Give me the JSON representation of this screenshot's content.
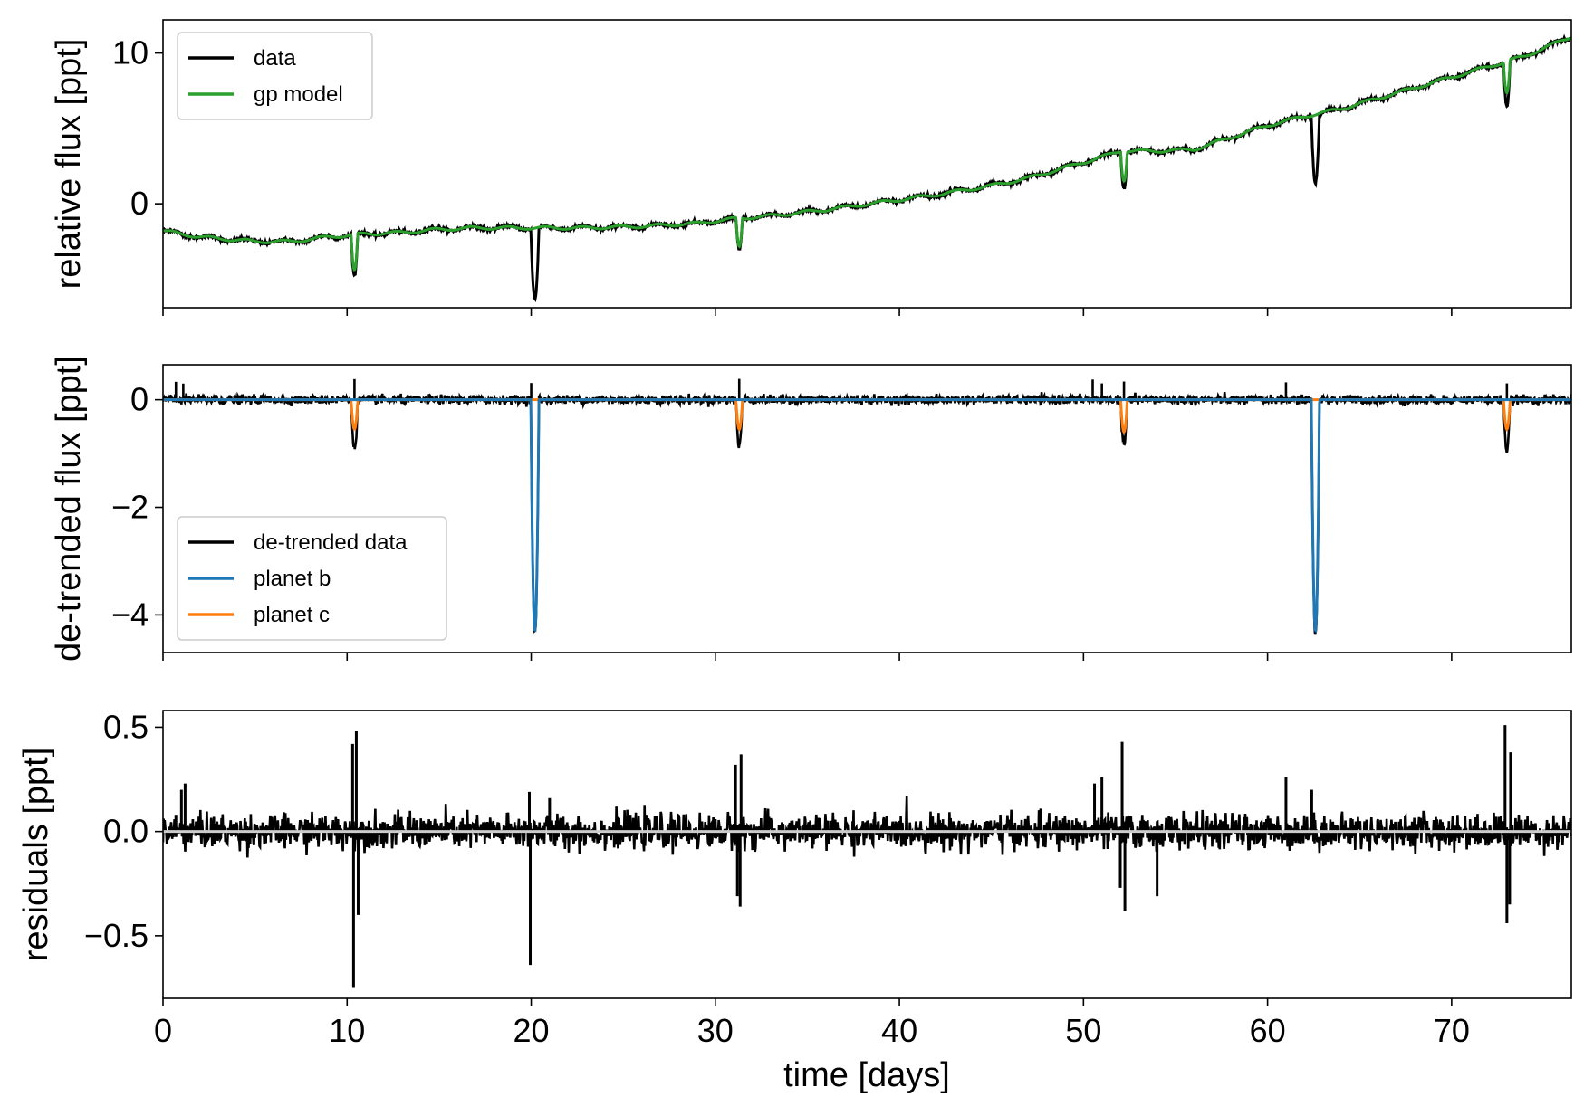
{
  "chart_data": [
    {
      "type": "line",
      "panel": "top",
      "ylabel": "relative flux [ppt]",
      "xlim": [
        0,
        76.5
      ],
      "ylim": [
        -6.9,
        12.2
      ],
      "xticks": [
        0,
        10,
        20,
        30,
        40,
        50,
        60,
        70
      ],
      "yticks": [
        0,
        10
      ],
      "ytick_labels": [
        "0",
        "10"
      ],
      "legend": {
        "position": "top-left",
        "entries": [
          "data",
          "gp model"
        ]
      },
      "trend": {
        "x": [
          0,
          2,
          4,
          5,
          7,
          9,
          11,
          13,
          15,
          17,
          20,
          23,
          26,
          29,
          31,
          33,
          36,
          39,
          42,
          45,
          47,
          49,
          51,
          52,
          54,
          56,
          58,
          60,
          62,
          64,
          66,
          68,
          70,
          72,
          74,
          76.5
        ],
        "y": [
          -1.8,
          -2.2,
          -2.4,
          -2.5,
          -2.5,
          -2.2,
          -2.0,
          -1.9,
          -1.7,
          -1.6,
          -1.6,
          -1.6,
          -1.5,
          -1.3,
          -1.0,
          -0.8,
          -0.4,
          0.1,
          0.6,
          1.2,
          1.7,
          2.4,
          3.1,
          3.5,
          3.5,
          3.6,
          4.4,
          5.2,
          5.8,
          6.3,
          7.0,
          7.7,
          8.4,
          9.1,
          9.8,
          11.1
        ]
      },
      "series": [
        {
          "name": "data",
          "color": "#000000",
          "dips": [
            {
              "t": 10.4,
              "depth": 2.8,
              "width": 0.18
            },
            {
              "t": 20.2,
              "depth": 4.7,
              "width": 0.22
            },
            {
              "t": 31.3,
              "depth": 2.1,
              "width": 0.18
            },
            {
              "t": 52.2,
              "depth": 2.4,
              "width": 0.18
            },
            {
              "t": 62.6,
              "depth": 4.5,
              "width": 0.22
            },
            {
              "t": 73.0,
              "depth": 3.0,
              "width": 0.18
            }
          ]
        },
        {
          "name": "gp model",
          "color": "#2ca02c",
          "dips": [
            {
              "t": 10.4,
              "depth": 2.4,
              "width": 0.18
            },
            {
              "t": 31.3,
              "depth": 1.9,
              "width": 0.18
            },
            {
              "t": 52.2,
              "depth": 1.9,
              "width": 0.18
            },
            {
              "t": 73.0,
              "depth": 2.1,
              "width": 0.18
            }
          ]
        }
      ]
    },
    {
      "type": "line",
      "panel": "middle",
      "ylabel": "de-trended flux [ppt]",
      "xlim": [
        0,
        76.5
      ],
      "ylim": [
        -4.7,
        0.65
      ],
      "xticks": [
        0,
        10,
        20,
        30,
        40,
        50,
        60,
        70
      ],
      "yticks": [
        0,
        -2,
        -4
      ],
      "ytick_labels": [
        "0",
        "−2",
        "−4"
      ],
      "legend": {
        "position": "bottom-left",
        "entries": [
          "de-trended data",
          "planet b",
          "planet c"
        ]
      },
      "series": [
        {
          "name": "de-trended data",
          "color": "#000000",
          "noise": 0.04,
          "dips": [
            {
              "t": 10.4,
              "depth": 0.9,
              "width": 0.18
            },
            {
              "t": 20.2,
              "depth": 4.35,
              "width": 0.22
            },
            {
              "t": 31.3,
              "depth": 0.85,
              "width": 0.18
            },
            {
              "t": 52.2,
              "depth": 0.85,
              "width": 0.18
            },
            {
              "t": 62.6,
              "depth": 4.4,
              "width": 0.22
            },
            {
              "t": 73.0,
              "depth": 0.95,
              "width": 0.18
            }
          ]
        },
        {
          "name": "planet b",
          "color": "#1f77b4",
          "dips": [
            {
              "t": 20.2,
              "depth": 4.3,
              "width": 0.22
            },
            {
              "t": 62.6,
              "depth": 4.3,
              "width": 0.22
            }
          ]
        },
        {
          "name": "planet c",
          "color": "#ff7f0e",
          "dips": [
            {
              "t": 10.4,
              "depth": 0.55,
              "width": 0.18
            },
            {
              "t": 31.3,
              "depth": 0.55,
              "width": 0.18
            },
            {
              "t": 52.2,
              "depth": 0.6,
              "width": 0.18
            },
            {
              "t": 73.0,
              "depth": 0.55,
              "width": 0.18
            }
          ]
        }
      ]
    },
    {
      "type": "line",
      "panel": "bottom",
      "ylabel": "residuals [ppt]",
      "xlabel": "time [days]",
      "xlim": [
        0,
        76.5
      ],
      "ylim": [
        -0.8,
        0.58
      ],
      "xticks": [
        0,
        10,
        20,
        30,
        40,
        50,
        60,
        70
      ],
      "xtick_labels": [
        "0",
        "10",
        "20",
        "30",
        "40",
        "50",
        "60",
        "70"
      ],
      "yticks": [
        0.5,
        0.0,
        -0.5
      ],
      "ytick_labels": [
        "0.5",
        "0.0",
        "−0.5"
      ],
      "series": [
        {
          "name": "residuals",
          "color": "#000000",
          "noise": 0.04,
          "spikes": [
            {
              "t": 0.7,
              "v": 0.08
            },
            {
              "t": 1.2,
              "v": 0.23
            },
            {
              "t": 1.0,
              "v": 0.2
            },
            {
              "t": 10.3,
              "v": 0.42
            },
            {
              "t": 10.5,
              "v": 0.48
            },
            {
              "t": 10.35,
              "v": -0.75
            },
            {
              "t": 10.6,
              "v": -0.4
            },
            {
              "t": 19.9,
              "v": 0.19
            },
            {
              "t": 19.95,
              "v": -0.64
            },
            {
              "t": 21.0,
              "v": 0.16
            },
            {
              "t": 31.1,
              "v": 0.32
            },
            {
              "t": 31.4,
              "v": 0.37
            },
            {
              "t": 31.2,
              "v": -0.31
            },
            {
              "t": 31.35,
              "v": -0.36
            },
            {
              "t": 50.6,
              "v": 0.23
            },
            {
              "t": 51.0,
              "v": 0.26
            },
            {
              "t": 52.1,
              "v": 0.43
            },
            {
              "t": 52.25,
              "v": -0.38
            },
            {
              "t": 52.0,
              "v": -0.27
            },
            {
              "t": 54.0,
              "v": -0.31
            },
            {
              "t": 61.0,
              "v": 0.26
            },
            {
              "t": 62.4,
              "v": 0.2
            },
            {
              "t": 72.9,
              "v": 0.51
            },
            {
              "t": 73.2,
              "v": 0.38
            },
            {
              "t": 73.0,
              "v": -0.44
            },
            {
              "t": 73.15,
              "v": -0.35
            }
          ]
        }
      ]
    }
  ]
}
